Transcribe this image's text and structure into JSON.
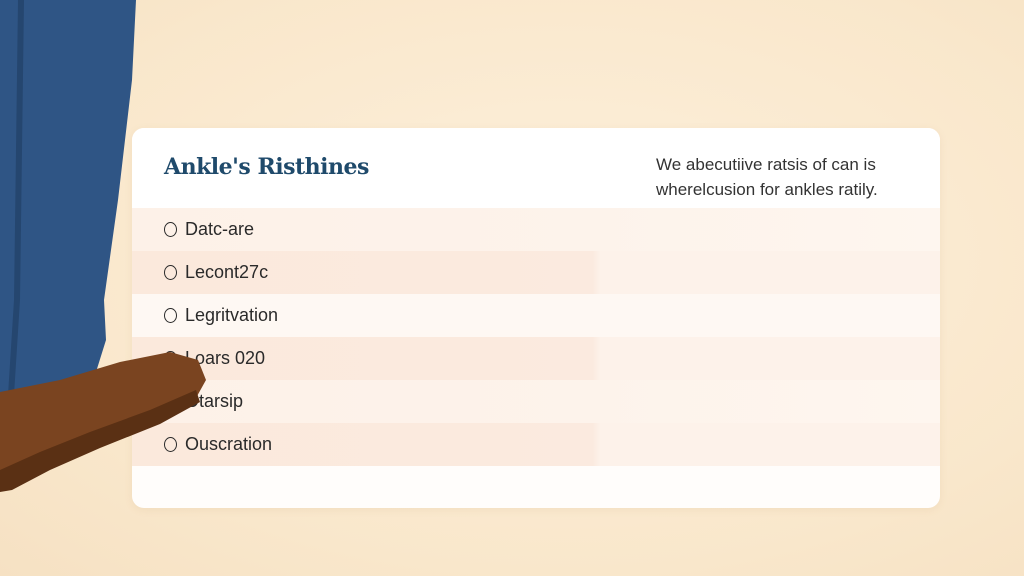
{
  "card": {
    "title": "Ankle's Risthines",
    "description_line1": "We abecutiive ratsis of can is",
    "description_line2": "wherelcusion for ankles ratily."
  },
  "options": [
    {
      "label": "Datc-are"
    },
    {
      "label": "Lecont27c"
    },
    {
      "label": "Legritvation"
    },
    {
      "label": "Loars 020"
    },
    {
      "label": "Otarsip"
    },
    {
      "label": "Ouscration"
    }
  ],
  "colors": {
    "title": "#1f4a6b",
    "pants": "#2f5585",
    "shoe": "#7a4420",
    "background": "#f9e7cb"
  }
}
